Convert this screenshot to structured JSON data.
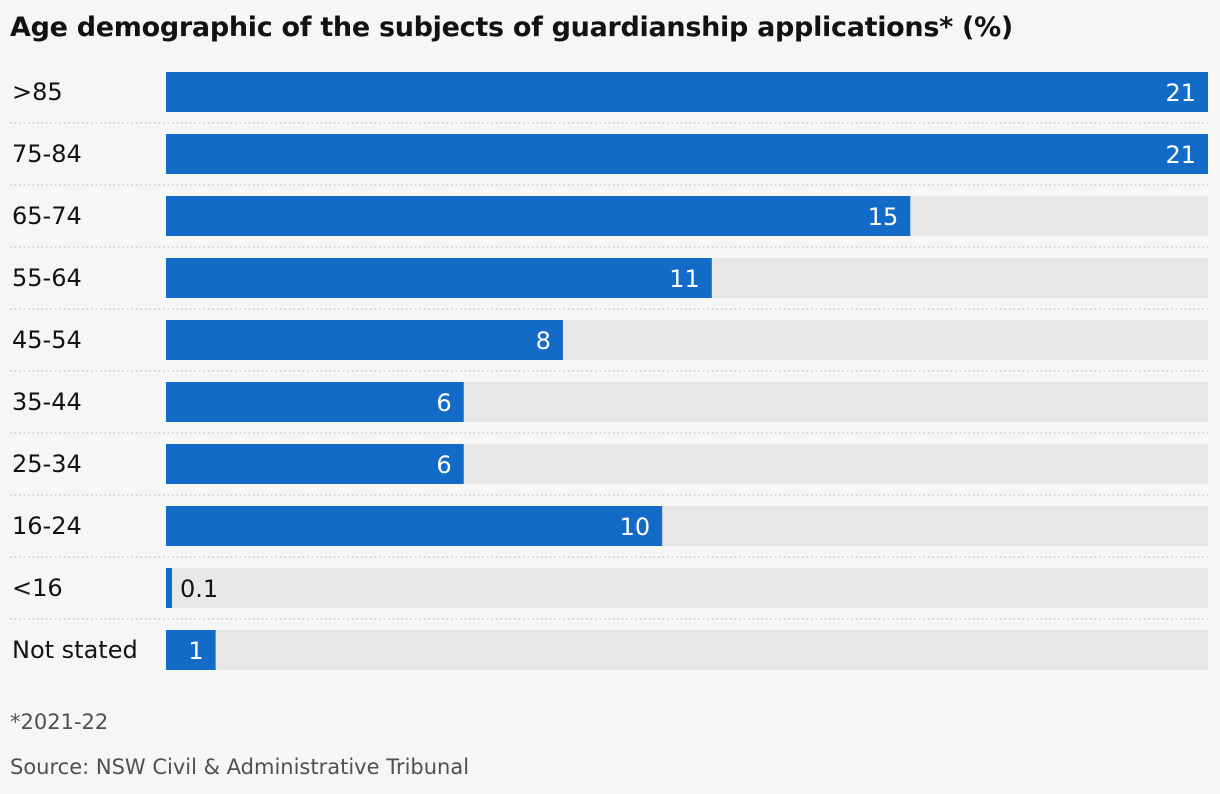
{
  "chart_data": {
    "type": "bar",
    "orientation": "horizontal",
    "title": "Age demographic of the subjects of guardianship applications* (%)",
    "categories": [
      ">85",
      "75-84",
      "65-74",
      "55-64",
      "45-54",
      "35-44",
      "25-34",
      "16-24",
      "<16",
      "Not stated"
    ],
    "values": [
      21,
      21,
      15,
      11,
      8,
      6,
      6,
      10,
      0.1,
      1
    ],
    "value_labels": [
      "21",
      "21",
      "15",
      "11",
      "8",
      "6",
      "6",
      "10",
      "0.1",
      "1"
    ],
    "xlim": [
      0,
      21
    ],
    "grid": false,
    "footnote": "*2021-22",
    "source": "Source: NSW Civil & Administrative Tribunal",
    "colors": {
      "bar": "#126bc6",
      "track": "#e8e8e8",
      "divider": "#c8c8c8",
      "label_inside": "#ffffff",
      "label_outside": "#121212"
    }
  }
}
